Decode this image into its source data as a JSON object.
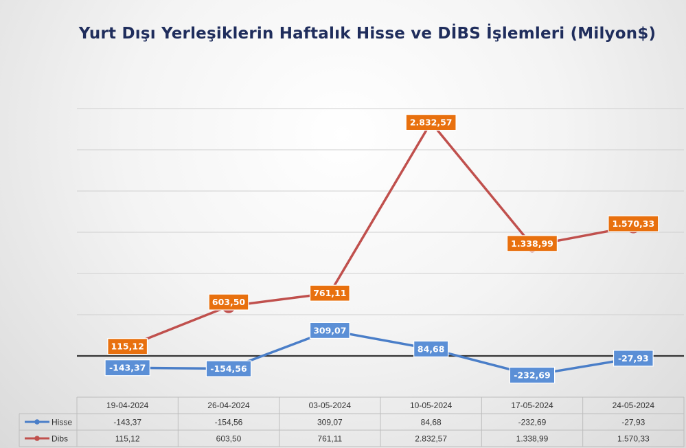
{
  "chart_data": {
    "type": "line",
    "title": "Yurt Dışı Yerleşiklerin Haftalık Hisse ve DİBS İşlemleri (Milyon$)",
    "categories": [
      "19-04-2024",
      "26-04-2024",
      "03-05-2024",
      "10-05-2024",
      "17-05-2024",
      "24-05-2024"
    ],
    "series": [
      {
        "name": "Hisse",
        "color": "#4a7ec8",
        "label_color": "#5b8fd6",
        "values": [
          -143.37,
          -154.56,
          309.07,
          84.68,
          -232.69,
          -27.93
        ],
        "labels": [
          "-143,37",
          "-154,56",
          "309,07",
          "84,68",
          "-232,69",
          "-27,93"
        ]
      },
      {
        "name": "Dibs",
        "color": "#c0504d",
        "label_color": "#e8700e",
        "values": [
          115.12,
          603.5,
          761.11,
          2832.57,
          1338.99,
          1570.33
        ],
        "labels": [
          "115,12",
          "603,50",
          "761,11",
          "2.832,57",
          "1.338,99",
          "1.570,33"
        ]
      }
    ],
    "ylim": [
      -500,
      3000
    ],
    "grid": true,
    "legend": "data-table"
  }
}
